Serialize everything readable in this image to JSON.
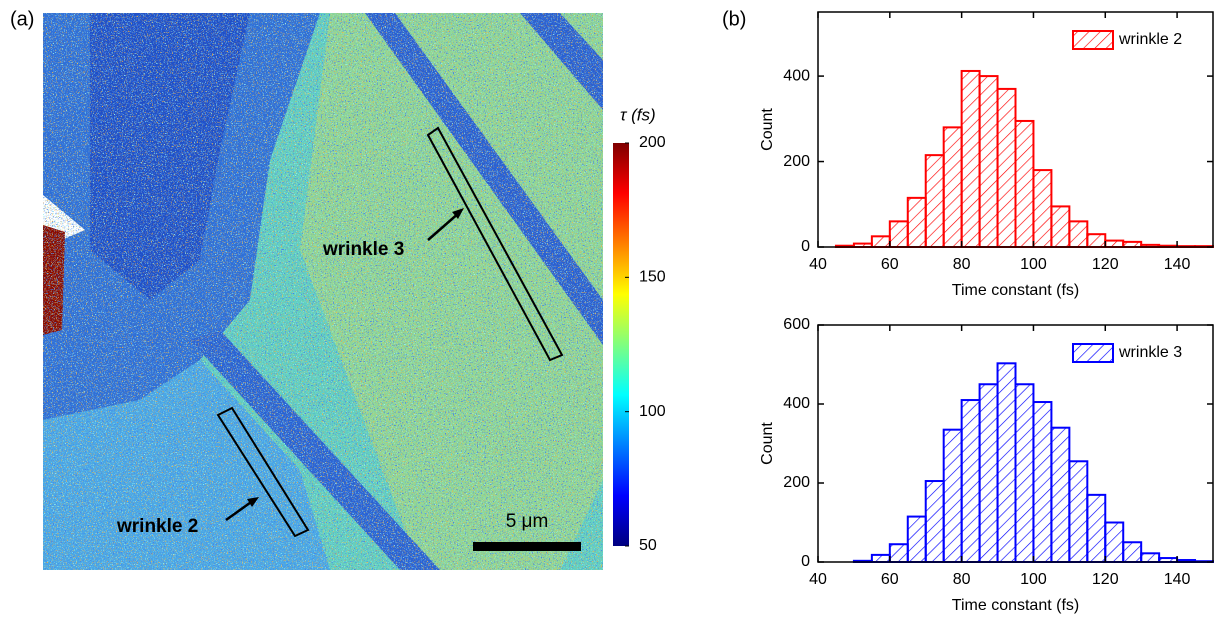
{
  "chart_data": [
    {
      "type": "image",
      "panel_label": "(a)",
      "annotations": [
        "wrinkle 3",
        "wrinkle 2"
      ],
      "scale_bar": "5 μm",
      "colorbar": {
        "label": "τ (fs)",
        "lim": [
          50,
          200
        ],
        "ticks": [
          50,
          100,
          150,
          200
        ],
        "colormap": "jet"
      }
    },
    {
      "type": "histogram",
      "panel_label": "(b)",
      "xlabel": "Time constant (fs)",
      "ylabel": "Count",
      "bins": [
        45,
        50,
        55,
        60,
        65,
        70,
        75,
        80,
        85,
        90,
        95,
        100,
        105,
        110,
        115,
        120,
        125,
        130,
        135,
        140,
        145,
        150
      ],
      "series": [
        {
          "name": "wrinkle 2",
          "color": "#ff0000",
          "values": [
            3,
            8,
            25,
            60,
            115,
            215,
            280,
            412,
            400,
            370,
            295,
            180,
            95,
            60,
            30,
            15,
            12,
            5,
            3,
            2,
            2
          ]
        }
      ],
      "xlim": [
        40,
        150
      ],
      "xticks": [
        40,
        60,
        80,
        100,
        120,
        140
      ],
      "ylim": [
        0,
        550
      ],
      "yticks": [
        0,
        200,
        400
      ],
      "legend": "upper right",
      "hatch": true
    },
    {
      "type": "histogram",
      "xlabel": "Time constant (fs)",
      "ylabel": "Count",
      "bins": [
        45,
        50,
        55,
        60,
        65,
        70,
        75,
        80,
        85,
        90,
        95,
        100,
        105,
        110,
        115,
        120,
        125,
        130,
        135,
        140,
        145,
        150
      ],
      "series": [
        {
          "name": "wrinkle 3",
          "color": "#0000ff",
          "values": [
            0,
            3,
            18,
            45,
            115,
            205,
            335,
            410,
            450,
            503,
            450,
            405,
            340,
            255,
            170,
            100,
            50,
            22,
            10,
            5,
            2
          ]
        }
      ],
      "xlim": [
        40,
        150
      ],
      "xticks": [
        40,
        60,
        80,
        100,
        120,
        140
      ],
      "ylim": [
        0,
        600
      ],
      "yticks": [
        0,
        200,
        400,
        600
      ],
      "legend": "upper right",
      "hatch": true
    }
  ]
}
